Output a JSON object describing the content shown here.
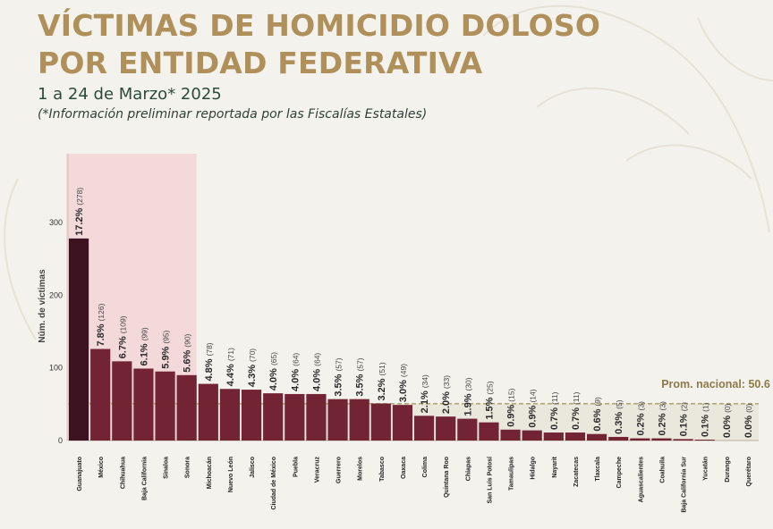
{
  "header": {
    "title_line1": "VÍCTIMAS DE HOMICIDIO DOLOSO",
    "title_line2": "POR ENTIDAD FEDERATIVA",
    "subtitle": "1 a 24 de Marzo* 2025",
    "note": "(*Información preliminar reportada por las Fiscalías Estatales)"
  },
  "colors": {
    "title": "#b0905a",
    "bar_top": "#3d1322",
    "bar_rest": "#722435",
    "highlight": "#f3d5d8",
    "average_band": "#e9e6dc",
    "average_line": "#a89a6a",
    "average_label": "#8d7a4a"
  },
  "chart_data": {
    "type": "bar",
    "title": "",
    "xlabel": "",
    "ylabel": "Núm. de víctimas",
    "ylim": [
      0,
      300
    ],
    "yticks": [
      "0",
      "100",
      "200",
      "300"
    ],
    "grid": false,
    "categories": [
      "Guanajuato",
      "México",
      "Chihuahua",
      "Baja California",
      "Sinaloa",
      "Sonora",
      "Michoacán",
      "Nuevo León",
      "Jalisco",
      "Ciudad de México",
      "Puebla",
      "Veracruz",
      "Guerrero",
      "Morelos",
      "Tabasco",
      "Oaxaca",
      "Colima",
      "Quintana Roo",
      "Chiapas",
      "San Luis Potosí",
      "Tamaulipas",
      "Hidalgo",
      "Nayarit",
      "Zacatecas",
      "Tlaxcala",
      "Campeche",
      "Aguascalientes",
      "Coahuila",
      "Baja California Sur",
      "Yucatán",
      "Durango",
      "Querétaro"
    ],
    "values": [
      278,
      126,
      109,
      99,
      95,
      90,
      78,
      71,
      70,
      65,
      64,
      64,
      57,
      57,
      51,
      49,
      34,
      33,
      30,
      25,
      15,
      14,
      11,
      11,
      9,
      5,
      3,
      3,
      2,
      1,
      0,
      0
    ],
    "percent_labels": [
      "17.2%",
      "7.8%",
      "6.7%",
      "6.1%",
      "5.9%",
      "5.6%",
      "4.8%",
      "4.4%",
      "4.3%",
      "4.0%",
      "4.0%",
      "4.0%",
      "3.5%",
      "3.5%",
      "3.2%",
      "3.0%",
      "2.1%",
      "2.0%",
      "1.9%",
      "1.5%",
      "0.9%",
      "0.9%",
      "0.7%",
      "0.7%",
      "0.6%",
      "0.3%",
      "0.2%",
      "0.2%",
      "0.1%",
      "0.1%",
      "0.0%",
      "0.0%"
    ],
    "count_labels": [
      "(278)",
      "(126)",
      "(109)",
      "(99)",
      "(95)",
      "(90)",
      "(78)",
      "(71)",
      "(70)",
      "(65)",
      "(64)",
      "(64)",
      "(57)",
      "(57)",
      "(51)",
      "(49)",
      "(34)",
      "(33)",
      "(30)",
      "(25)",
      "(15)",
      "(14)",
      "(11)",
      "(11)",
      "(9)",
      "(5)",
      "(3)",
      "(3)",
      "(2)",
      "(1)",
      "(0)",
      "(0)"
    ],
    "highlight_top_n": 6,
    "average": {
      "value": 50.6,
      "label": "Prom. nacional: 50.6"
    }
  }
}
